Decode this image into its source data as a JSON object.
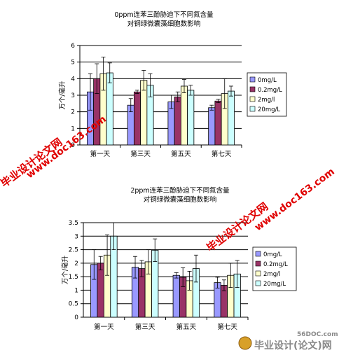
{
  "charts": [
    {
      "type": "bar",
      "title": [
        "0ppm连苯三酚胁迫下不同氮含量",
        "对铜绿微囊藻细胞数影响"
      ],
      "ylabel": "万个/毫升",
      "ylim": [
        0,
        6
      ],
      "yticks": [
        "0",
        "1",
        "2",
        "3",
        "4",
        "5",
        "6"
      ],
      "categories": [
        "第一天",
        "第三天",
        "第五天",
        "第七天"
      ],
      "series": [
        {
          "name": "0mg/L",
          "values": [
            3.2,
            2.4,
            2.6,
            2.25
          ],
          "err": [
            1.1,
            0.4,
            0.4,
            0.15
          ]
        },
        {
          "name": "0.2mg/L",
          "values": [
            4.0,
            3.2,
            2.9,
            2.65
          ],
          "err": [
            0.9,
            0.1,
            0.3,
            0.1
          ]
        },
        {
          "name": "2mg/l",
          "values": [
            4.3,
            3.9,
            3.55,
            3.1
          ],
          "err": [
            1.0,
            0.6,
            0.4,
            0.9
          ]
        },
        {
          "name": "20mg/L",
          "values": [
            4.35,
            3.6,
            3.3,
            3.25
          ],
          "err": [
            0.6,
            0.7,
            0.3,
            0.3
          ]
        }
      ]
    },
    {
      "type": "bar",
      "title": [
        "2ppm连苯三酚胁迫下不同氮含量",
        "对铜绿微囊藻细胞数影响"
      ],
      "ylabel": "万个/毫升",
      "ylim": [
        0,
        3.5
      ],
      "yticks": [
        "0",
        "0.5",
        "1",
        "1.5",
        "2",
        "2.5",
        "3",
        "3.5"
      ],
      "categories": [
        "第一天",
        "第三天",
        "第五天",
        "第七天"
      ],
      "series": [
        {
          "name": "0mg/L",
          "values": [
            1.95,
            1.85,
            1.55,
            1.28
          ],
          "err": [
            0.55,
            0.4,
            0.1,
            0.2
          ]
        },
        {
          "name": "0.2mg/L",
          "values": [
            2.0,
            1.8,
            1.48,
            1.18
          ],
          "err": [
            0.25,
            0.3,
            0.35,
            0.2
          ]
        },
        {
          "name": "2mg/l",
          "values": [
            2.3,
            2.05,
            1.35,
            1.55
          ],
          "err": [
            0.75,
            0.45,
            0.35,
            0.45
          ]
        },
        {
          "name": "20mg/L",
          "values": [
            3.0,
            2.48,
            1.8,
            1.6
          ],
          "err": [
            0.5,
            0.42,
            0.5,
            0.5
          ]
        }
      ]
    }
  ],
  "colors": {
    "fills": [
      "#9999ff",
      "#993366",
      "#ffffcc",
      "#ccffff"
    ]
  },
  "watermarks": {
    "site": "www.doc163.com",
    "name": "毕业设计论文网",
    "footer_domain": "56DOC.com",
    "footer_name": "毕业设计(论文)网"
  }
}
